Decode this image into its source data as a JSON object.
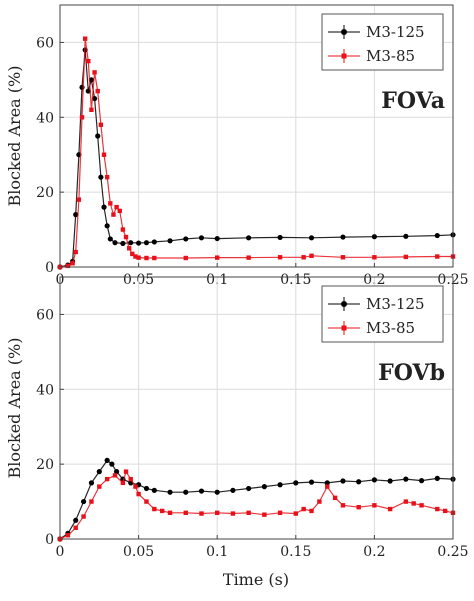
{
  "chart_data": [
    {
      "type": "line",
      "panel_label": "FOVa",
      "xlabel": "",
      "ylabel": "Blocked Area (%)",
      "xlim": [
        0,
        0.25
      ],
      "ylim": [
        0,
        70
      ],
      "xticks": [
        "0",
        "0.05",
        "0.1",
        "0.15",
        "0.2",
        "0.25"
      ],
      "yticks": [
        "0",
        "20",
        "40",
        "60"
      ],
      "grid": true,
      "legend_position": "top-right",
      "series": [
        {
          "name": "M3-125",
          "color": "#000000",
          "x": [
            0,
            0.005,
            0.008,
            0.01,
            0.012,
            0.014,
            0.016,
            0.018,
            0.02,
            0.022,
            0.024,
            0.026,
            0.028,
            0.03,
            0.032,
            0.035,
            0.04,
            0.045,
            0.05,
            0.055,
            0.06,
            0.07,
            0.08,
            0.09,
            0.1,
            0.12,
            0.14,
            0.16,
            0.18,
            0.2,
            0.22,
            0.24,
            0.25
          ],
          "y": [
            0,
            0.5,
            1.5,
            14,
            30,
            48,
            58,
            47,
            50,
            45,
            35,
            24,
            16,
            11,
            7.5,
            6.5,
            6.3,
            6.5,
            6.4,
            6.5,
            6.7,
            7,
            7.5,
            7.8,
            7.6,
            7.8,
            7.9,
            7.8,
            8,
            8.1,
            8.2,
            8.4,
            8.6
          ]
        },
        {
          "name": "M3-85",
          "color": "#e8111a",
          "x": [
            0,
            0.005,
            0.008,
            0.01,
            0.012,
            0.014,
            0.016,
            0.018,
            0.02,
            0.022,
            0.024,
            0.026,
            0.028,
            0.03,
            0.032,
            0.034,
            0.036,
            0.038,
            0.04,
            0.042,
            0.044,
            0.046,
            0.048,
            0.05,
            0.055,
            0.06,
            0.08,
            0.1,
            0.12,
            0.14,
            0.155,
            0.16,
            0.18,
            0.2,
            0.22,
            0.24,
            0.25
          ],
          "y": [
            0,
            0.3,
            1,
            4,
            18,
            40,
            61,
            55,
            42,
            52,
            47,
            38,
            30,
            24,
            17,
            14,
            16,
            15,
            10,
            8,
            5,
            3.5,
            2.8,
            2.5,
            2.4,
            2.4,
            2.4,
            2.5,
            2.5,
            2.6,
            2.6,
            3,
            2.6,
            2.6,
            2.7,
            2.8,
            2.8
          ]
        }
      ]
    },
    {
      "type": "line",
      "panel_label": "FOVb",
      "xlabel": "Time (s)",
      "ylabel": "Blocked Area (%)",
      "xlim": [
        0,
        0.25
      ],
      "ylim": [
        0,
        70
      ],
      "xticks": [
        "0",
        "0.05",
        "0.1",
        "0.15",
        "0.2",
        "0.25"
      ],
      "yticks": [
        "0",
        "20",
        "40",
        "60"
      ],
      "grid": true,
      "legend_position": "top-right",
      "series": [
        {
          "name": "M3-125",
          "color": "#000000",
          "x": [
            0,
            0.005,
            0.01,
            0.015,
            0.02,
            0.025,
            0.03,
            0.033,
            0.036,
            0.04,
            0.045,
            0.05,
            0.055,
            0.06,
            0.07,
            0.08,
            0.09,
            0.1,
            0.11,
            0.12,
            0.13,
            0.14,
            0.15,
            0.16,
            0.17,
            0.18,
            0.19,
            0.2,
            0.21,
            0.22,
            0.23,
            0.24,
            0.25
          ],
          "y": [
            0,
            1.5,
            5,
            10,
            15,
            18,
            21,
            20,
            18,
            16,
            15,
            14.5,
            13.5,
            13,
            12.5,
            12.5,
            12.8,
            12.5,
            13,
            13.5,
            14,
            14.5,
            15,
            15.2,
            15,
            15.5,
            15.3,
            15.8,
            15.5,
            16,
            15.6,
            16.2,
            16
          ]
        },
        {
          "name": "M3-85",
          "color": "#e8111a",
          "x": [
            0,
            0.005,
            0.01,
            0.015,
            0.02,
            0.025,
            0.03,
            0.035,
            0.04,
            0.042,
            0.045,
            0.048,
            0.05,
            0.055,
            0.06,
            0.065,
            0.07,
            0.08,
            0.09,
            0.1,
            0.11,
            0.12,
            0.13,
            0.14,
            0.15,
            0.155,
            0.16,
            0.165,
            0.17,
            0.175,
            0.18,
            0.19,
            0.2,
            0.21,
            0.22,
            0.225,
            0.23,
            0.24,
            0.245,
            0.25
          ],
          "y": [
            0,
            1,
            3,
            6,
            10,
            14,
            16,
            17,
            15,
            18,
            16,
            14,
            12,
            10,
            8,
            7.5,
            7,
            7,
            6.8,
            7,
            6.8,
            7,
            6.5,
            7,
            6.8,
            8,
            7.5,
            10,
            14,
            11,
            9,
            8.5,
            9,
            8,
            10,
            9.5,
            9,
            8,
            7.5,
            7
          ]
        }
      ]
    }
  ]
}
